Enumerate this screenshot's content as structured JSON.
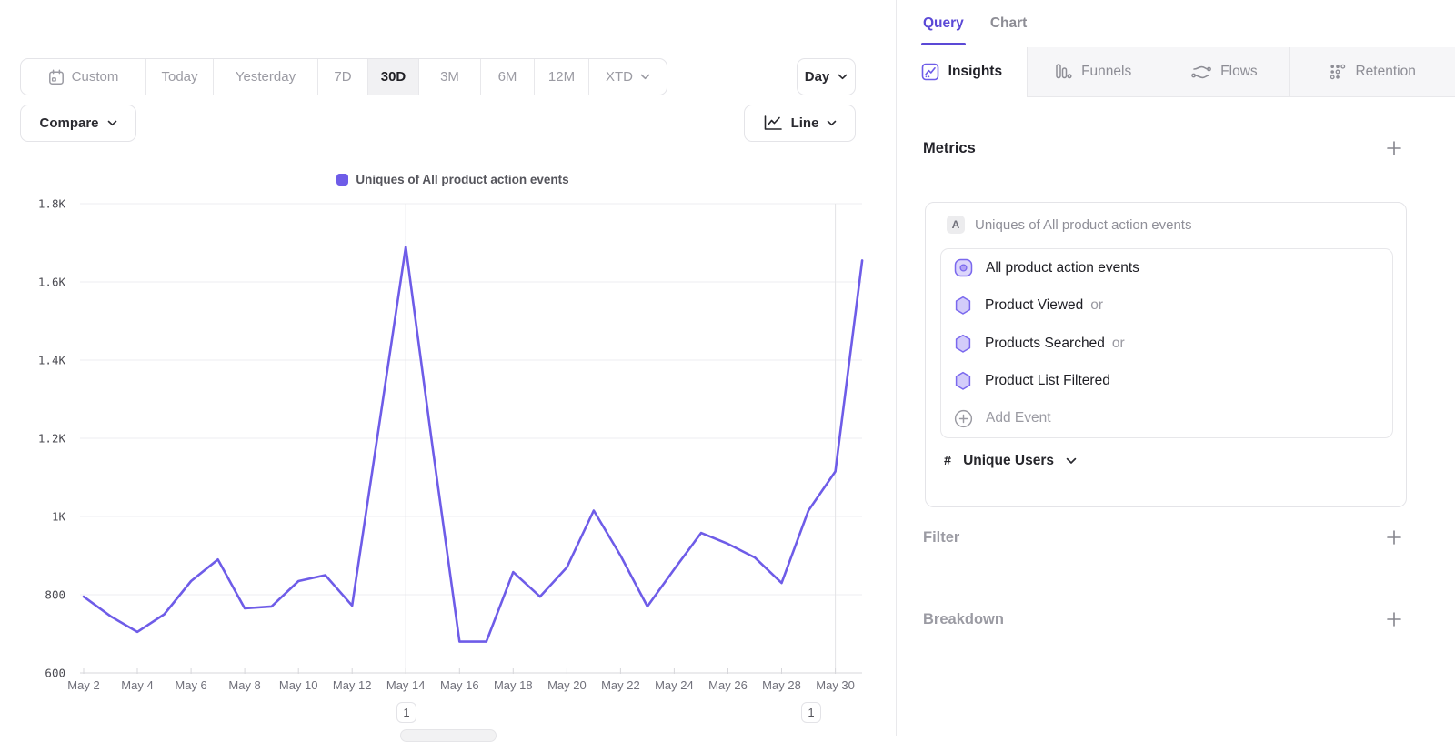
{
  "colors": {
    "accent_purple": "#6E5CE8",
    "query_tab_purple": "#5B49D6",
    "event_icon_purple": "#7A68EE",
    "event_icon_fill": "#D6CFFA",
    "grid_line": "#EEEEF1",
    "axis_line": "#D7D7DB",
    "muted_text": "#9B9BA3",
    "dark_text": "#1F1F24"
  },
  "icons": {
    "plus": "+",
    "chevron_down": "v",
    "hash": "#",
    "calendar": "calendar glyph",
    "line_chart": "axis with zigzag line",
    "insights": "square with trend line",
    "funnels": "vertical bars",
    "flows": "wavy streams",
    "retention": "grid of dots"
  },
  "toolbar": {
    "date_ranges": [
      "Custom",
      "Today",
      "Yesterday",
      "7D",
      "30D",
      "3M",
      "6M",
      "12M",
      "XTD"
    ],
    "selected_range": "30D",
    "granularity_label": "Day",
    "compare_label": "Compare",
    "chart_type_label": "Line"
  },
  "chart_data": {
    "type": "line",
    "legend": "Uniques of All product action events",
    "x": [
      "May 2",
      "May 3",
      "May 4",
      "May 5",
      "May 6",
      "May 7",
      "May 8",
      "May 9",
      "May 10",
      "May 11",
      "May 12",
      "May 13",
      "May 14",
      "May 15",
      "May 16",
      "May 17",
      "May 18",
      "May 19",
      "May 20",
      "May 21",
      "May 22",
      "May 23",
      "May 24",
      "May 25",
      "May 26",
      "May 27",
      "May 28",
      "May 29",
      "May 30",
      "May 31"
    ],
    "values": [
      795,
      745,
      705,
      750,
      835,
      890,
      765,
      770,
      835,
      850,
      772,
      1230,
      1690,
      1175,
      680,
      680,
      858,
      795,
      870,
      1015,
      900,
      770,
      865,
      958,
      930,
      895,
      830,
      1015,
      1115,
      1655
    ],
    "ylim": [
      600,
      1800
    ],
    "y_ticks": [
      {
        "value": 600,
        "label": "600"
      },
      {
        "value": 800,
        "label": "800"
      },
      {
        "value": 1000,
        "label": "1K"
      },
      {
        "value": 1200,
        "label": "1.2K"
      },
      {
        "value": 1400,
        "label": "1.4K"
      },
      {
        "value": 1600,
        "label": "1.6K"
      },
      {
        "value": 1800,
        "label": "1.8K"
      }
    ],
    "x_label_every": 2,
    "grid": true,
    "legend_position": "top-center",
    "line_color": "#6E5CE8",
    "annotations": [
      {
        "x": "May 14",
        "count": "1"
      },
      {
        "x": "May 30",
        "count": "1"
      }
    ]
  },
  "panel": {
    "view_tabs": [
      {
        "label": "Query",
        "active": true
      },
      {
        "label": "Chart",
        "active": false
      }
    ],
    "report_tabs": [
      {
        "label": "Insights",
        "active": true
      },
      {
        "label": "Funnels",
        "active": false
      },
      {
        "label": "Flows",
        "active": false
      },
      {
        "label": "Retention",
        "active": false
      }
    ],
    "metrics": {
      "title": "Metrics",
      "card": {
        "badge": "A",
        "title": "Uniques of All product action events",
        "events": [
          {
            "label": "All product action events",
            "suffix": ""
          },
          {
            "label": "Product Viewed",
            "suffix": "or"
          },
          {
            "label": "Products Searched",
            "suffix": "or"
          },
          {
            "label": "Product List Filtered",
            "suffix": ""
          }
        ],
        "add_event_label": "Add Event",
        "measurement": {
          "symbol": "#",
          "label": "Unique Users"
        }
      }
    },
    "sections": [
      {
        "title": "Filter"
      },
      {
        "title": "Breakdown"
      }
    ]
  }
}
